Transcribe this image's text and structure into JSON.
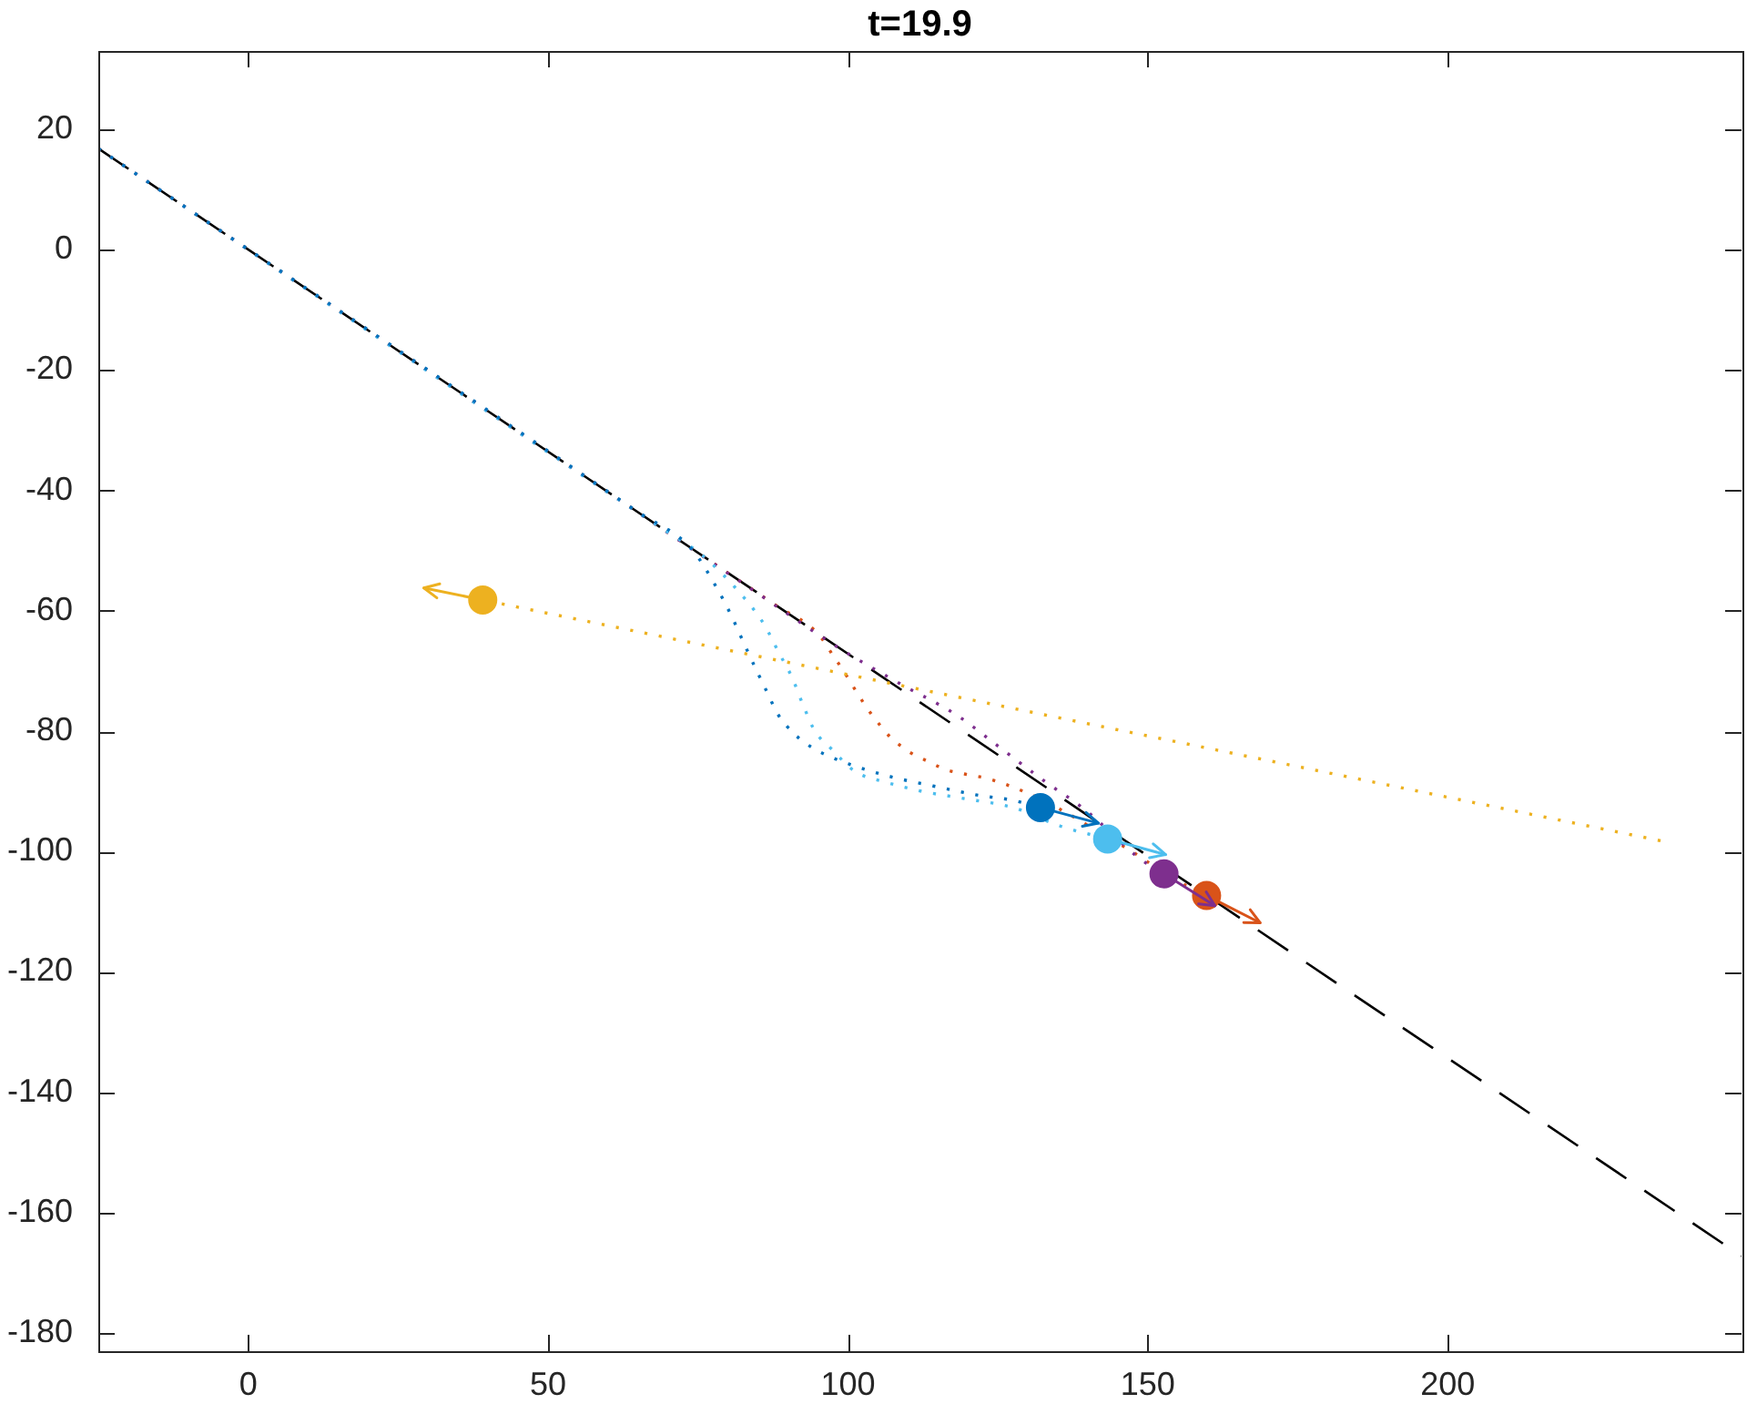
{
  "chart_data": {
    "type": "line",
    "title": "t=19.9",
    "xlim": [
      -25,
      249
    ],
    "ylim": [
      -183,
      33
    ],
    "xticks": [
      0,
      50,
      100,
      150,
      200
    ],
    "yticks": [
      -180,
      -160,
      -140,
      -120,
      -100,
      -80,
      -60,
      -40,
      -20,
      0,
      20
    ],
    "series": [
      {
        "color": "#000000",
        "line_style": "dashed",
        "marker": "none",
        "x": [
          -25,
          249
        ],
        "values": [
          16.8,
          -167.2
        ]
      },
      {
        "color": "#d95319",
        "line_style": "dotted",
        "marker": "none",
        "x": [
          -25,
          88,
          95,
          97.7,
          99.2,
          101.7,
          103.2,
          104.8,
          106.3,
          108,
          110.3,
          113.3,
          116.4,
          119.4,
          123.4,
          129.5,
          135.6,
          142.6,
          147.7,
          153.7,
          159.8
        ],
        "values": [
          16.8,
          -59.1,
          -63.8,
          -67.7,
          -69.9,
          -73.9,
          -76.2,
          -78.3,
          -80.2,
          -81.8,
          -83.5,
          -85,
          -86.4,
          -87.1,
          -87.9,
          -90.1,
          -93.1,
          -97.2,
          -100.2,
          -104.2,
          -107.3
        ]
      },
      {
        "color": "#7e2f8e",
        "line_style": "dotted",
        "marker": "none",
        "x": [
          -25,
          82,
          98.7,
          108.3,
          118.4,
          124.4,
          132.5,
          139.6,
          148.7,
          152.7
        ],
        "values": [
          16.8,
          -55.1,
          -66.3,
          -71.9,
          -77.5,
          -82,
          -88.1,
          -93.1,
          -101.2,
          -103.7
        ]
      },
      {
        "color": "#4dbeee",
        "line_style": "dotted",
        "marker": "none",
        "x": [
          -25,
          70,
          75.5,
          83,
          86.1,
          88.5,
          90.6,
          92.7,
          94.5,
          97.3,
          101.2,
          106.4,
          112.4,
          119.4,
          127.6,
          135.5,
          143.3
        ],
        "values": [
          16.8,
          -47,
          -50.6,
          -58.2,
          -62.4,
          -67,
          -70.9,
          -76.1,
          -80,
          -83,
          -86.7,
          -88.5,
          -90,
          -91.2,
          -92.7,
          -95.8,
          -97.9
        ]
      },
      {
        "color": "#0072bd",
        "line_style": "dotted",
        "marker": "none",
        "x": [
          -25,
          65,
          73.9,
          77.9,
          80.6,
          82.7,
          84.8,
          86.7,
          88.2,
          91.2,
          94.5,
          100.3,
          107.3,
          114.2,
          121.5,
          127.6,
          132.1
        ],
        "values": [
          16.8,
          -43.6,
          -49.7,
          -55.8,
          -60.9,
          -65.5,
          -70,
          -73.9,
          -77,
          -80.6,
          -83,
          -85.5,
          -87.6,
          -89.1,
          -90.6,
          -91.5,
          -92.7
        ]
      },
      {
        "color": "#edb120",
        "line_style": "dotted",
        "marker": "none",
        "x": [
          235.5,
          39.1
        ],
        "values": [
          -98.2,
          -58.2
        ]
      },
      {
        "type": "scatter",
        "marker": "circle",
        "x": [
          132.1,
          143.3,
          152.7,
          159.8,
          39.1
        ],
        "values": [
          -92.7,
          -97.9,
          -103.7,
          -107.3,
          -58.2
        ],
        "colors": [
          "#0072bd",
          "#4dbeee",
          "#7e2f8e",
          "#d95319",
          "#edb120"
        ]
      }
    ]
  }
}
